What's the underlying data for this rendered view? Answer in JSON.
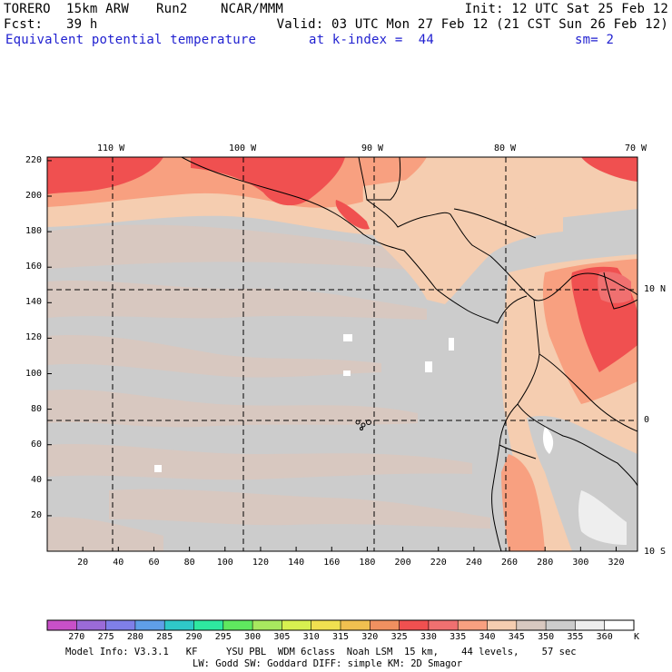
{
  "header": {
    "model": "TORERO  15km ARW",
    "run": "Run2",
    "org": "NCAR/MMM",
    "init": "Init: 12 UTC Sat 25 Feb 12",
    "fcst": "Fcst:   39 h",
    "valid": "Valid: 03 UTC Mon 27 Feb 12 (21 CST Sun 26 Feb 12)",
    "field": "Equivalent potential temperature",
    "level": "at k-index =  44",
    "smooth": "sm= 2"
  },
  "map": {
    "lon_labels": [
      "110 W",
      "100 W",
      "90 W",
      "80 W",
      "70 W"
    ],
    "lat_labels": [
      "10 N",
      "0",
      "10 S"
    ],
    "x_ticks": [
      "20",
      "40",
      "60",
      "80",
      "100",
      "120",
      "140",
      "160",
      "180",
      "200",
      "220",
      "240",
      "260",
      "280",
      "300",
      "320"
    ],
    "y_ticks": [
      "20",
      "40",
      "60",
      "80",
      "100",
      "120",
      "140",
      "160",
      "180",
      "200",
      "220"
    ]
  },
  "colorbar": {
    "labels": [
      "270",
      "275",
      "280",
      "285",
      "290",
      "295",
      "300",
      "305",
      "310",
      "315",
      "320",
      "325",
      "330",
      "335",
      "340",
      "345",
      "350",
      "355",
      "360"
    ],
    "unit": "K",
    "colors": [
      "#c850c8",
      "#9b6bd8",
      "#7f7fe8",
      "#5f9fe8",
      "#2fc8c8",
      "#2ee8a0",
      "#5fe85f",
      "#a8e85f",
      "#d8f050",
      "#f0e050",
      "#f0c050",
      "#f09060",
      "#f05050",
      "#f07070",
      "#f8a080",
      "#f5cdb0",
      "#d8c8c0",
      "#cccccc",
      "#eeeeee",
      "#ffffff"
    ]
  },
  "footer": {
    "line1": "Model Info: V3.3.1   KF     YSU PBL  WDM 6class  Noah LSM  15 km,    44 levels,    57 sec",
    "line2": "LW: Godd SW: Goddard DIFF: simple KM: 2D Smagor"
  }
}
